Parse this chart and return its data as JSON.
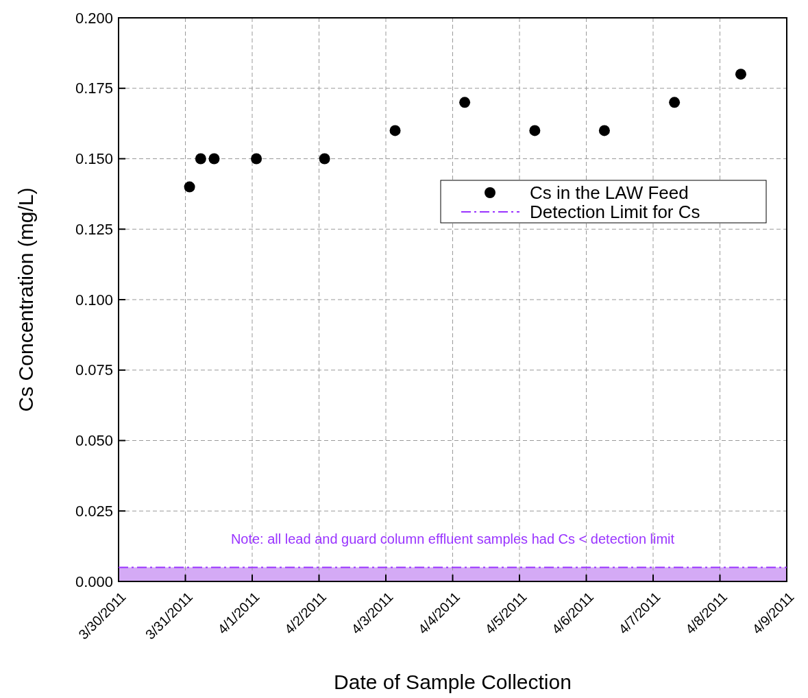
{
  "chart_data": {
    "type": "scatter",
    "xlabel": "Date of Sample Collection",
    "ylabel": "Cs Concentration (mg/L)",
    "xlim": [
      "2011-03-30",
      "2011-04-09"
    ],
    "xticks": [
      {
        "value": "2011-03-30",
        "label": "3/30/2011"
      },
      {
        "value": "2011-03-31",
        "label": "3/31/2011"
      },
      {
        "value": "2011-04-01",
        "label": "4/1/2011"
      },
      {
        "value": "2011-04-02",
        "label": "4/2/2011"
      },
      {
        "value": "2011-04-03",
        "label": "4/3/2011"
      },
      {
        "value": "2011-04-04",
        "label": "4/4/2011"
      },
      {
        "value": "2011-04-05",
        "label": "4/5/2011"
      },
      {
        "value": "2011-04-06",
        "label": "4/6/2011"
      },
      {
        "value": "2011-04-07",
        "label": "4/7/2011"
      },
      {
        "value": "2011-04-08",
        "label": "4/8/2011"
      },
      {
        "value": "2011-04-09",
        "label": "4/9/2011"
      }
    ],
    "ylim": [
      0,
      0.2
    ],
    "yticks": [
      {
        "value": 0,
        "label": "0.000"
      },
      {
        "value": 0.025,
        "label": "0.025"
      },
      {
        "value": 0.05,
        "label": "0.050"
      },
      {
        "value": 0.075,
        "label": "0.075"
      },
      {
        "value": 0.1,
        "label": "0.100"
      },
      {
        "value": 0.125,
        "label": "0.125"
      },
      {
        "value": 0.15,
        "label": "0.150"
      },
      {
        "value": 0.175,
        "label": "0.175"
      },
      {
        "value": 0.2,
        "label": "0.200"
      }
    ],
    "grid": true,
    "legend": "top right",
    "series": [
      {
        "name": "Cs in the LAW Feed",
        "marker": "circle",
        "color": "#000000",
        "x": [
          "2011-03-31T01:30",
          "2011-03-31T05:30",
          "2011-03-31T10:20",
          "2011-04-01T01:30",
          "2011-04-02T02:00",
          "2011-04-03T03:20",
          "2011-04-04T04:20",
          "2011-04-05T05:30",
          "2011-04-06T06:30",
          "2011-04-07T07:40",
          "2011-04-08T07:30"
        ],
        "values": [
          0.14,
          0.15,
          0.15,
          0.15,
          0.15,
          0.16,
          0.17,
          0.16,
          0.16,
          0.17,
          0.18
        ]
      },
      {
        "name": "Detection Limit for Cs",
        "type": "line",
        "line_style": "dashed",
        "color": "#9933ff",
        "x": [
          "2011-03-30",
          "2011-04-09"
        ],
        "values": [
          0.005,
          0.005
        ]
      }
    ],
    "bands": [
      {
        "axis": "y",
        "from": 0,
        "to": 0.005,
        "color": "#d4aaf5"
      }
    ],
    "annotations": [
      "Note: all lead and guard column effluent samples had Cs < detection limit"
    ]
  }
}
